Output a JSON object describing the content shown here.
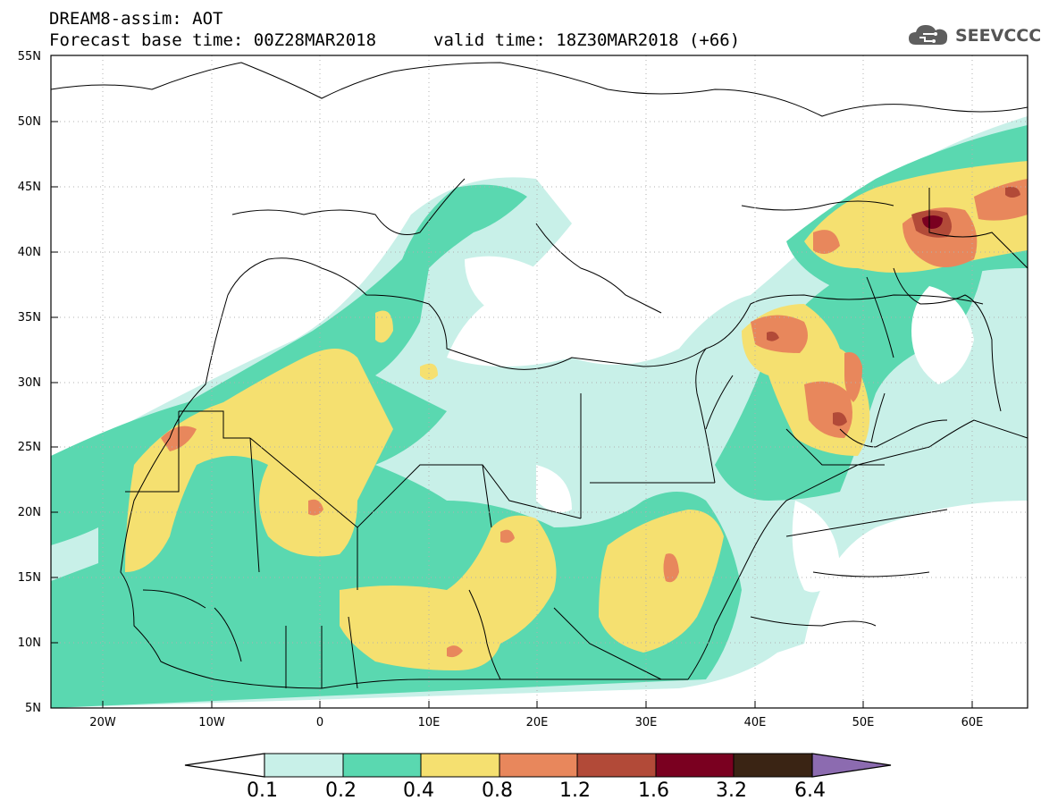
{
  "header": {
    "model_title": "DREAM8-assim: AOT",
    "base_time": "Forecast base time: 00Z28MAR2018",
    "valid_time": "valid time: 18Z30MAR2018 (+66)"
  },
  "logo": {
    "icon": "cloud-icon",
    "text": "SEEVCCC"
  },
  "map": {
    "lon_ticks": [
      "20W",
      "10W",
      "0",
      "10E",
      "20E",
      "30E",
      "40E",
      "50E",
      "60E"
    ],
    "lat_ticks": [
      "55N",
      "50N",
      "45N",
      "40N",
      "35N",
      "30N",
      "25N",
      "20N",
      "15N",
      "10N",
      "5N"
    ]
  },
  "legend": {
    "levels": [
      "0.1",
      "0.2",
      "0.4",
      "0.8",
      "1.2",
      "1.6",
      "3.2",
      "6.4"
    ],
    "colors": [
      "#c8f0e8",
      "#5ad8b0",
      "#f5e070",
      "#e8875c",
      "#b24a38",
      "#7a0020",
      "#3a2414",
      "#8c6bb0"
    ]
  }
}
